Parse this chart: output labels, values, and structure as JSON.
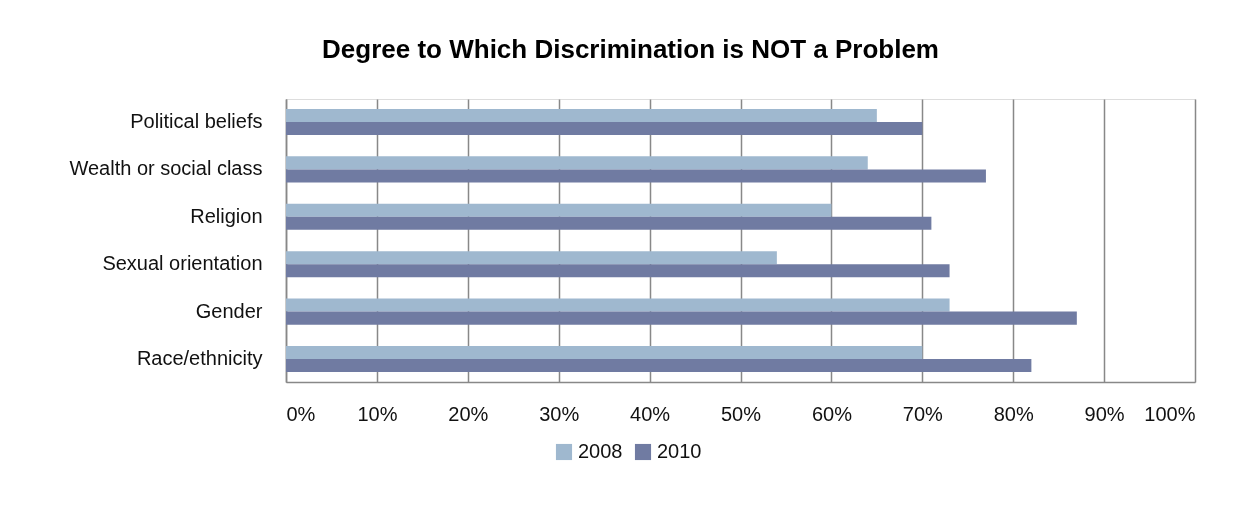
{
  "chart_data": {
    "type": "bar",
    "orientation": "horizontal",
    "title": "Degree to Which Discrimination is NOT a Problem",
    "categories": [
      "Political beliefs",
      "Wealth or social class",
      "Religion",
      "Sexual orientation",
      "Gender",
      "Race/ethnicity"
    ],
    "series": [
      {
        "name": "2008",
        "color": "#9fb8cf",
        "values": [
          65,
          64,
          60,
          54,
          73,
          70
        ]
      },
      {
        "name": "2010",
        "color": "#707ba2",
        "values": [
          70,
          77,
          71,
          73,
          87,
          82
        ]
      }
    ],
    "xlim": [
      0,
      100
    ],
    "xticks": [
      {
        "value": 0,
        "label": "0%"
      },
      {
        "value": 10,
        "label": "10%"
      },
      {
        "value": 20,
        "label": "20%"
      },
      {
        "value": 30,
        "label": "30%"
      },
      {
        "value": 40,
        "label": "40%"
      },
      {
        "value": 50,
        "label": "50%"
      },
      {
        "value": 60,
        "label": "60%"
      },
      {
        "value": 70,
        "label": "70%"
      },
      {
        "value": 80,
        "label": "80%"
      },
      {
        "value": 90,
        "label": "90%"
      },
      {
        "value": 100,
        "label": "100%"
      }
    ],
    "grid": "x",
    "legend": "bottom"
  }
}
